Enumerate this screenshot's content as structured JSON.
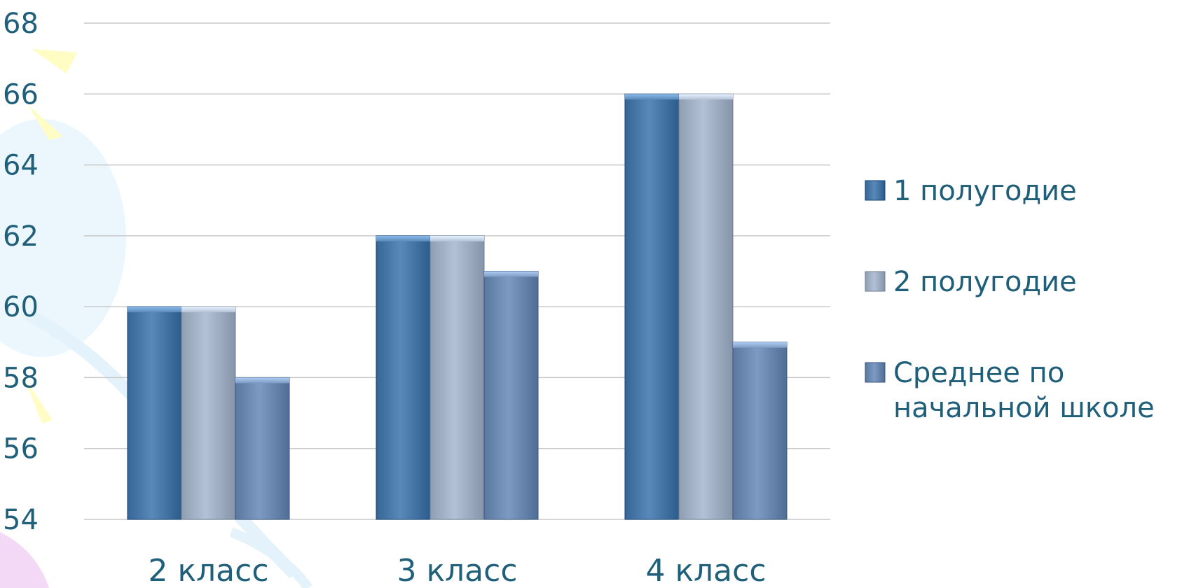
{
  "chart_data": {
    "type": "bar",
    "categories": [
      "2 класс",
      "3 класс",
      "4 класс"
    ],
    "series": [
      {
        "name": "1 полугодие",
        "values": [
          60,
          62,
          66
        ],
        "color": "#4f7fae"
      },
      {
        "name": "2 полугодие",
        "values": [
          60,
          62,
          66
        ],
        "color": "#a9b7cc"
      },
      {
        "name": "Среднее по начальной школе",
        "values": [
          58,
          61,
          59
        ],
        "color": "#7391b8"
      }
    ],
    "ylim": [
      54,
      68
    ],
    "yticks": [
      54,
      56,
      58,
      60,
      62,
      64,
      66,
      68
    ],
    "grid": true,
    "legend_position": "right",
    "title": "",
    "xlabel": "",
    "ylabel": ""
  }
}
